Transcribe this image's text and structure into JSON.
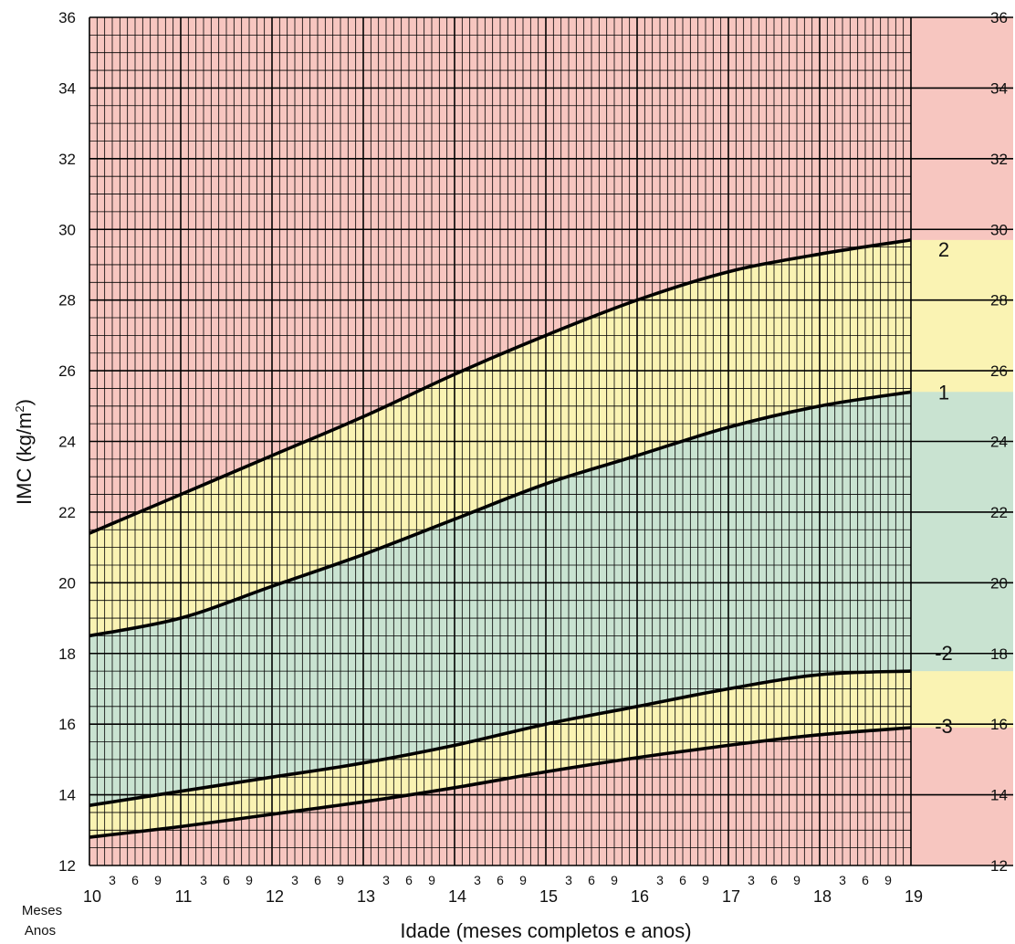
{
  "chart_data": {
    "type": "line",
    "title": "",
    "xlabel": "Idade (meses completos e anos)",
    "ylabel": "IMC (kg/m²)",
    "ylabel_main": "IMC (kg/m",
    "ylabel_sup": "2",
    "ylabel_close": ")",
    "row_label_months": "Meses",
    "row_label_years": "Anos",
    "xlim": [
      10,
      19
    ],
    "ylim": [
      12,
      36
    ],
    "y_ticks": [
      12,
      14,
      16,
      18,
      20,
      22,
      24,
      26,
      28,
      30,
      32,
      34,
      36
    ],
    "year_ticks": [
      10,
      11,
      12,
      13,
      14,
      15,
      16,
      17,
      18,
      19
    ],
    "month_ticks": [
      "3",
      "6",
      "9"
    ],
    "grid": true,
    "zone_colors": {
      "red": "#f7c6c0",
      "yellow": "#faf3b3",
      "green": "#c9e3d1",
      "line": "#000000"
    },
    "x": [
      10,
      11,
      12,
      13,
      14,
      15,
      16,
      17,
      18,
      19
    ],
    "series": [
      {
        "name": "2",
        "values": [
          21.4,
          22.5,
          23.6,
          24.7,
          25.9,
          27.0,
          28.0,
          28.8,
          29.3,
          29.7
        ]
      },
      {
        "name": "1",
        "values": [
          18.5,
          19.0,
          19.9,
          20.8,
          21.8,
          22.8,
          23.6,
          24.4,
          25.0,
          25.4
        ]
      },
      {
        "name": "-2",
        "values": [
          13.7,
          14.1,
          14.5,
          14.9,
          15.4,
          16.0,
          16.5,
          17.0,
          17.4,
          17.5
        ]
      },
      {
        "name": "-3",
        "values": [
          12.8,
          13.1,
          13.45,
          13.8,
          14.2,
          14.65,
          15.05,
          15.4,
          15.7,
          15.9
        ]
      }
    ]
  }
}
